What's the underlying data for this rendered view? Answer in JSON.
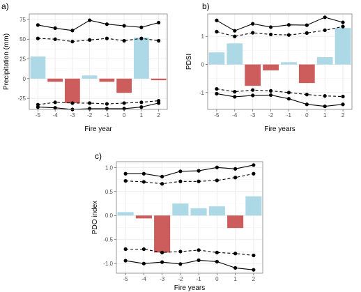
{
  "colors": {
    "positive": "#add8e6",
    "negative": "#cd5c5c",
    "grid": "#ebebeb",
    "border": "#7f7f7f",
    "line": "#000000"
  },
  "chart_data": [
    {
      "panel": "a)",
      "type": "bar",
      "xlabel": "Fire year",
      "ylabel": "Precipitation (mm)",
      "ylim": [
        -39,
        82
      ],
      "yticks": [
        -25,
        0,
        25,
        50,
        75
      ],
      "grid": true,
      "categories": [
        "-5",
        "-4",
        "-3",
        "-2",
        "-1",
        "0",
        "1",
        "2"
      ],
      "values": [
        28,
        -4,
        -31,
        4,
        -4,
        -18,
        52,
        -2
      ],
      "upper_solid": [
        68,
        64,
        61,
        74,
        69,
        67,
        65,
        71
      ],
      "upper_dashed": [
        51,
        50,
        47,
        49,
        51,
        48,
        51,
        48
      ],
      "lower_dashed": [
        -33,
        -30,
        -31,
        -31,
        -32,
        -31,
        -30,
        -28
      ],
      "lower_solid": [
        -36,
        -37,
        -39,
        -38,
        -38,
        -38,
        -36,
        -31
      ]
    },
    {
      "panel": "b)",
      "type": "bar",
      "xlabel": "Fire years",
      "ylabel": "PDSI",
      "ylim": [
        -1.6,
        1.8
      ],
      "yticks": [
        -1,
        0,
        1
      ],
      "grid": true,
      "categories": [
        "-5",
        "-4",
        "-3",
        "-2",
        "-1",
        "0",
        "1",
        "2"
      ],
      "values": [
        0.43,
        0.75,
        -0.76,
        -0.21,
        0.08,
        -0.66,
        0.26,
        1.3
      ],
      "upper_solid": [
        1.57,
        1.2,
        1.45,
        1.33,
        1.41,
        1.4,
        1.68,
        1.5
      ],
      "upper_dashed": [
        1.17,
        1.0,
        1.13,
        1.07,
        1.05,
        1.12,
        1.22,
        1.35
      ],
      "lower_dashed": [
        -0.87,
        -0.97,
        -0.91,
        -0.94,
        -1.0,
        -1.07,
        -1.12,
        -1.14
      ],
      "lower_solid": [
        -1.04,
        -1.15,
        -1.1,
        -1.09,
        -1.22,
        -1.42,
        -1.49,
        -1.42
      ]
    },
    {
      "panel": "c)",
      "type": "bar",
      "xlabel": "Fire years",
      "ylabel": "PDO index",
      "ylim": [
        -1.2,
        1.12
      ],
      "yticks": [
        -1.0,
        -0.5,
        0.0,
        0.5,
        1.0
      ],
      "grid": true,
      "categories": [
        "-5",
        "-4",
        "-3",
        "-2",
        "-1",
        "0",
        "1",
        "2"
      ],
      "values": [
        0.07,
        -0.06,
        -0.77,
        0.25,
        0.15,
        0.19,
        -0.26,
        0.4
      ],
      "upper_solid": [
        0.87,
        0.87,
        0.81,
        0.92,
        0.93,
        1.0,
        0.97,
        1.05
      ],
      "upper_dashed": [
        0.72,
        0.7,
        0.66,
        0.71,
        0.71,
        0.73,
        0.79,
        0.87
      ],
      "lower_dashed": [
        -0.7,
        -0.7,
        -0.77,
        -0.75,
        -0.72,
        -0.77,
        -0.79,
        -0.83
      ],
      "lower_solid": [
        -0.94,
        -1.0,
        -0.97,
        -1.01,
        -0.93,
        -0.96,
        -1.09,
        -1.13
      ]
    }
  ]
}
